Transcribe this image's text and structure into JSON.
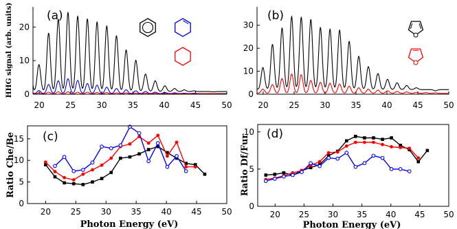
{
  "figure": {
    "ylabel_top": "HHG signal (arb. units)",
    "xlabel": "Photon Energy (eV)"
  },
  "chart_data": [
    {
      "id": "a",
      "type": "line",
      "panel_label": "(a)",
      "ylabel": "HHG signal (arb. units)",
      "xlim": [
        19,
        50
      ],
      "ylim": [
        0,
        26
      ],
      "xticks": [
        20,
        25,
        30,
        35,
        40,
        45,
        50
      ],
      "yticks": [
        0,
        10,
        20
      ],
      "harmonic_x": [
        18.4,
        19.95,
        21.5,
        23.05,
        24.6,
        26.15,
        27.7,
        29.25,
        30.8,
        32.35,
        33.9,
        35.45,
        37.0,
        38.55,
        40.1,
        41.65,
        43.2,
        44.75,
        46.3,
        47.85
      ],
      "series": [
        {
          "color": "#000000",
          "peaks": [
            20.5,
            8.8,
            18.2,
            22.3,
            24.3,
            23.2,
            22.4,
            21.5,
            20.3,
            17.4,
            13.2,
            10.1,
            6.0,
            4.0,
            2.5,
            1.7,
            1.3,
            1.0,
            0.8,
            0.7
          ],
          "baseline": 0.8
        },
        {
          "color": "#0000ff",
          "peaks": [
            1.5,
            1.1,
            2.9,
            4.0,
            4.6,
            4.1,
            3.2,
            2.7,
            2.1,
            1.7,
            1.3,
            1.0,
            0.8,
            0.6,
            0.5,
            0.4,
            0.3,
            0.3,
            0.2,
            0.2
          ],
          "baseline": 0.2
        },
        {
          "color": "#ff0000",
          "peaks": [
            0.9,
            0.4,
            0.6,
            0.7,
            0.7,
            0.6,
            0.6,
            0.5,
            0.5,
            0.4,
            0.4,
            0.3,
            0.3,
            0.3,
            0.2,
            0.2,
            0.2,
            0.2,
            0.2,
            0.2
          ],
          "baseline": 0.1
        }
      ],
      "molecules": [
        {
          "name": "benzene",
          "color": "#000000",
          "shape": "hexagon-ring"
        },
        {
          "name": "cyclohexene",
          "color": "#0000ff",
          "shape": "hexagon-one-double"
        },
        {
          "name": "cyclohexane",
          "color": "#ff0000",
          "shape": "hexagon"
        }
      ]
    },
    {
      "id": "b",
      "type": "line",
      "panel_label": "(b)",
      "xlim": [
        19,
        50
      ],
      "ylim": [
        0,
        38
      ],
      "xticks": [
        20,
        25,
        30,
        35,
        40,
        45,
        50
      ],
      "yticks": [
        0,
        10,
        20,
        30
      ],
      "harmonic_x": [
        18.4,
        19.95,
        21.5,
        23.05,
        24.6,
        26.15,
        27.7,
        29.25,
        30.8,
        32.35,
        33.9,
        35.45,
        37.0,
        38.55,
        40.1,
        41.65,
        43.2,
        44.75,
        46.3,
        47.85
      ],
      "series": [
        {
          "color": "#000000",
          "peaks": [
            5.5,
            11.6,
            21.7,
            28.8,
            33.8,
            33.5,
            32.5,
            29.0,
            28.3,
            27.9,
            23.0,
            16.5,
            12.0,
            9.0,
            6.5,
            5.0,
            3.8,
            2.8,
            2.0,
            1.5
          ],
          "baseline": 2.0
        },
        {
          "color": "#ff0000",
          "peaks": [
            1.8,
            2.2,
            4.2,
            6.8,
            8.8,
            8.5,
            6.0,
            5.2,
            4.8,
            4.4,
            3.5,
            2.8,
            2.2,
            1.8,
            1.5,
            1.2,
            1.0,
            0.8,
            0.7,
            0.6
          ],
          "baseline": 0.4
        }
      ],
      "molecules": [
        {
          "name": "furan",
          "color": "#000000",
          "shape": "pentagon-o-double"
        },
        {
          "name": "dihydrofuran",
          "color": "#ff0000",
          "shape": "pentagon-o-single"
        }
      ]
    },
    {
      "id": "c",
      "type": "line",
      "panel_label": "(c)",
      "ylabel": "Ratio Che/Be",
      "xlim": [
        17,
        50
      ],
      "ylim": [
        0,
        18
      ],
      "xticks": [
        20,
        25,
        30,
        35,
        40,
        45,
        50
      ],
      "yticks": [
        0,
        5,
        10,
        15
      ],
      "series": [
        {
          "color": "#000000",
          "marker": "square",
          "x": [
            20,
            21.55,
            23.1,
            24.65,
            26.2,
            27.75,
            29.3,
            30.85,
            32.4,
            33.95,
            35.5,
            37.05,
            38.6,
            40.15,
            41.7,
            43.25,
            44.8,
            46.35
          ],
          "y": [
            9.0,
            6.2,
            4.8,
            4.6,
            4.4,
            5.0,
            5.8,
            7.2,
            10.5,
            10.8,
            11.5,
            12.5,
            13.2,
            11.8,
            10.5,
            9.3,
            9.0,
            6.8
          ]
        },
        {
          "color": "#ff0000",
          "marker": "circle",
          "x": [
            20,
            21.55,
            23.1,
            24.65,
            26.2,
            27.75,
            29.3,
            30.85,
            32.4,
            33.95,
            35.5,
            37.05,
            38.6,
            40.15,
            41.7,
            43.25,
            44.8
          ],
          "y": [
            9.6,
            7.4,
            6.0,
            5.5,
            6.8,
            7.8,
            8.9,
            10.5,
            13.2,
            13.8,
            15.5,
            14.0,
            15.8,
            11.0,
            14.2,
            8.5,
            8.5
          ]
        },
        {
          "color": "#0000ff",
          "marker": "circle",
          "x": [
            21.55,
            23.1,
            24.65,
            26.2,
            27.75,
            29.3,
            30.85,
            32.4,
            33.95,
            35.5,
            37.05,
            38.6,
            40.15,
            41.7,
            43.25
          ],
          "y": [
            8.7,
            10.8,
            7.5,
            7.8,
            9.5,
            13.2,
            12.8,
            13.5,
            17.8,
            16.3,
            9.8,
            14.0,
            8.5,
            11.0,
            7.5
          ]
        }
      ]
    },
    {
      "id": "d",
      "type": "line",
      "panel_label": "(d)",
      "ylabel": "Ratio Df/Fur",
      "xlim": [
        17,
        50
      ],
      "ylim": [
        0,
        11
      ],
      "xticks": [
        20,
        25,
        30,
        35,
        40,
        45,
        50
      ],
      "yticks": [
        0,
        5,
        10
      ],
      "series": [
        {
          "color": "#000000",
          "marker": "square",
          "x": [
            18.4,
            19.95,
            21.5,
            23.05,
            24.6,
            26.15,
            27.7,
            29.25,
            30.8,
            32.35,
            33.9,
            35.45,
            37.0,
            38.55,
            40.1,
            41.65,
            43.2,
            44.75,
            46.3
          ],
          "y": [
            4.2,
            4.3,
            4.5,
            4.2,
            4.8,
            5.2,
            5.6,
            6.8,
            7.4,
            8.8,
            9.4,
            9.2,
            9.2,
            9.0,
            9.2,
            8.2,
            7.6,
            6.0,
            7.5
          ]
        },
        {
          "color": "#ff0000",
          "marker": "circle",
          "x": [
            18.4,
            19.95,
            21.5,
            23.05,
            24.6,
            26.15,
            27.7,
            29.25,
            30.8,
            32.35,
            33.9,
            35.45,
            37.0,
            38.55,
            40.1,
            41.65,
            43.2,
            44.75
          ],
          "y": [
            3.6,
            3.8,
            4.1,
            4.5,
            4.8,
            5.5,
            6.0,
            7.2,
            7.3,
            8.1,
            8.6,
            8.6,
            8.6,
            8.3,
            8.0,
            7.9,
            7.8,
            6.5
          ]
        },
        {
          "color": "#0000ff",
          "marker": "circle",
          "x": [
            18.4,
            19.95,
            21.5,
            23.05,
            24.6,
            26.15,
            27.7,
            29.25,
            30.8,
            32.35,
            33.9,
            35.45,
            37.0,
            38.55,
            40.1,
            41.65,
            43.2
          ],
          "y": [
            3.4,
            3.7,
            4.0,
            4.2,
            4.6,
            5.8,
            5.4,
            6.5,
            6.4,
            7.2,
            5.3,
            5.8,
            6.8,
            6.5,
            5.0,
            5.0,
            4.7
          ]
        }
      ]
    }
  ]
}
